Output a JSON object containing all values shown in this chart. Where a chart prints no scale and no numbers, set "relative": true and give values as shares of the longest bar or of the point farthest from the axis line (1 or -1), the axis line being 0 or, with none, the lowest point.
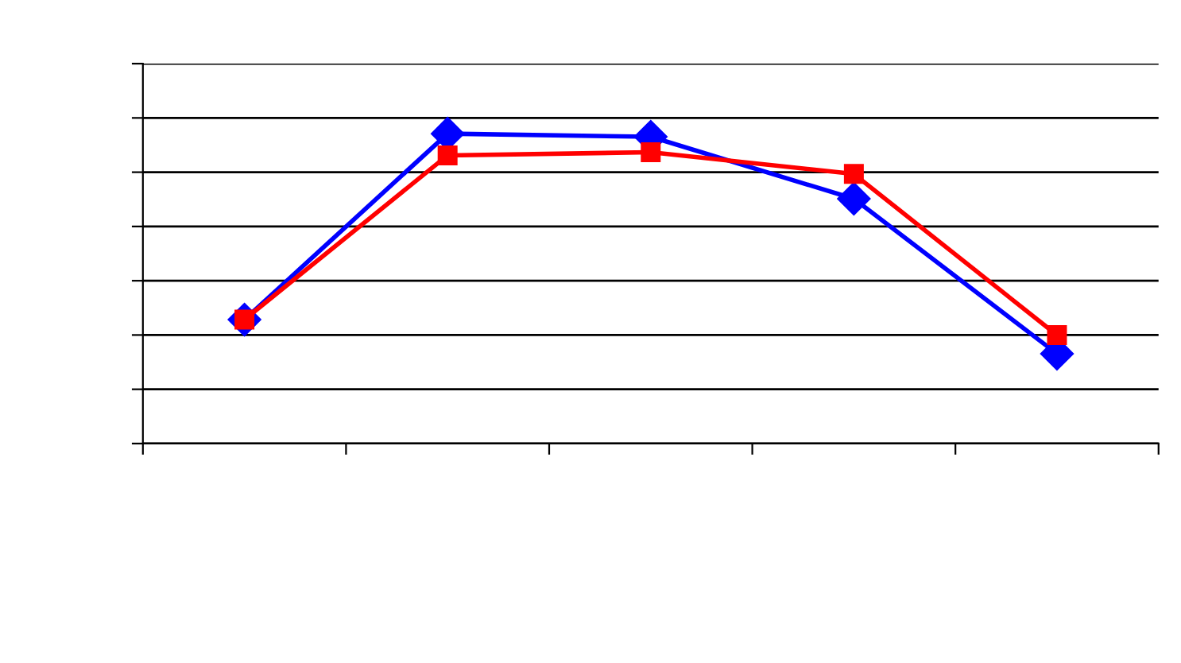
{
  "chart_data": {
    "type": "line",
    "relative": true,
    "categories": [
      null,
      null,
      null,
      null,
      null
    ],
    "series": [
      {
        "color": "#0000ff",
        "marker": "diamond",
        "values": [
          0.4,
          1,
          0.99,
          0.79,
          0.29
        ]
      },
      {
        "color": "#ff0000",
        "marker": "square",
        "values": [
          0.4,
          0.93,
          0.94,
          0.87,
          0.35
        ]
      }
    ],
    "grid": "y",
    "line_style": "solid"
  }
}
